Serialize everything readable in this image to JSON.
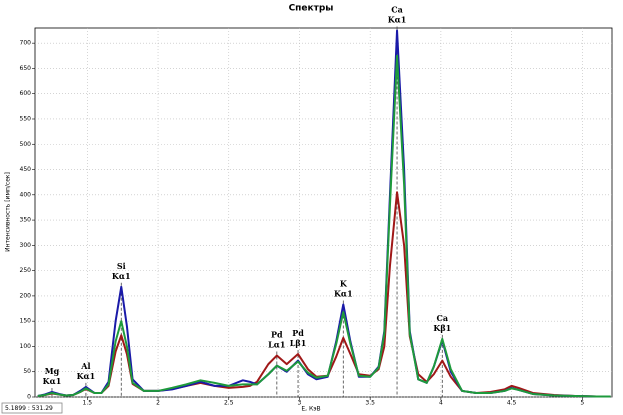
{
  "chart_data": {
    "type": "line",
    "title": "Спектры",
    "x_label": "E, КэВ",
    "y_label": "Интенсивность [имп/сек]",
    "status": "5.1899 : 531.29",
    "xlim": [
      1.13,
      5.21
    ],
    "xticks": [
      1.5,
      2,
      2.5,
      3,
      3.5,
      4,
      4.5,
      5
    ],
    "ylim": [
      0,
      730
    ],
    "yticks": [
      0,
      50,
      100,
      150,
      200,
      250,
      300,
      350,
      400,
      450,
      500,
      550,
      600,
      650,
      700
    ],
    "grid": true,
    "x": [
      1.15,
      1.2,
      1.25,
      1.3,
      1.35,
      1.4,
      1.45,
      1.49,
      1.55,
      1.6,
      1.65,
      1.7,
      1.74,
      1.78,
      1.82,
      1.9,
      2.0,
      2.1,
      2.2,
      2.3,
      2.4,
      2.5,
      2.6,
      2.65,
      2.7,
      2.78,
      2.84,
      2.91,
      2.99,
      3.06,
      3.12,
      3.2,
      3.26,
      3.31,
      3.36,
      3.42,
      3.5,
      3.56,
      3.6,
      3.64,
      3.69,
      3.74,
      3.78,
      3.84,
      3.9,
      3.95,
      4.01,
      4.07,
      4.15,
      4.25,
      4.35,
      4.45,
      4.5,
      4.55,
      4.65,
      4.8,
      4.95,
      5.1,
      5.2
    ],
    "series": [
      {
        "color": "#a01818",
        "values": [
          2,
          4,
          7,
          5,
          3,
          4,
          10,
          16,
          8,
          8,
          22,
          90,
          122,
          85,
          26,
          12,
          12,
          16,
          22,
          28,
          22,
          18,
          20,
          22,
          30,
          65,
          82,
          65,
          85,
          55,
          40,
          42,
          80,
          117,
          85,
          45,
          42,
          55,
          100,
          260,
          405,
          300,
          120,
          45,
          30,
          45,
          72,
          40,
          12,
          8,
          10,
          15,
          22,
          18,
          8,
          4,
          2,
          1,
          1
        ]
      },
      {
        "color": "#1a1aa8",
        "values": [
          2,
          5,
          10,
          6,
          3,
          4,
          12,
          20,
          8,
          8,
          30,
          150,
          218,
          140,
          35,
          12,
          12,
          15,
          22,
          30,
          22,
          22,
          33,
          30,
          25,
          45,
          62,
          50,
          72,
          45,
          35,
          40,
          110,
          183,
          110,
          40,
          40,
          60,
          130,
          400,
          725,
          450,
          130,
          35,
          28,
          60,
          112,
          50,
          12,
          8,
          8,
          12,
          18,
          14,
          6,
          3,
          2,
          1,
          1
        ]
      },
      {
        "color": "#1e9a3c",
        "values": [
          2,
          4,
          8,
          5,
          3,
          4,
          10,
          17,
          8,
          8,
          25,
          110,
          150,
          100,
          28,
          12,
          12,
          18,
          25,
          33,
          28,
          22,
          25,
          25,
          25,
          45,
          62,
          52,
          70,
          48,
          38,
          42,
          105,
          168,
          105,
          42,
          40,
          58,
          125,
          380,
          675,
          420,
          125,
          35,
          28,
          60,
          115,
          55,
          12,
          8,
          8,
          12,
          17,
          14,
          6,
          3,
          2,
          1,
          1
        ]
      }
    ],
    "annotations": [
      {
        "x": 1.25,
        "text": [
          "Mg",
          "Kα1"
        ]
      },
      {
        "x": 1.49,
        "text": [
          "Al",
          "Kα1"
        ]
      },
      {
        "x": 1.74,
        "text": [
          "Si",
          "Kα1"
        ]
      },
      {
        "x": 2.84,
        "text": [
          "Pd",
          "Lα1"
        ]
      },
      {
        "x": 2.99,
        "text": [
          "Pd",
          "Lβ1"
        ]
      },
      {
        "x": 3.31,
        "text": [
          "K",
          "Kα1"
        ]
      },
      {
        "x": 3.69,
        "text": [
          "Ca",
          "Kα1"
        ]
      },
      {
        "x": 4.01,
        "text": [
          "Ca",
          "Kβ1"
        ]
      }
    ]
  }
}
